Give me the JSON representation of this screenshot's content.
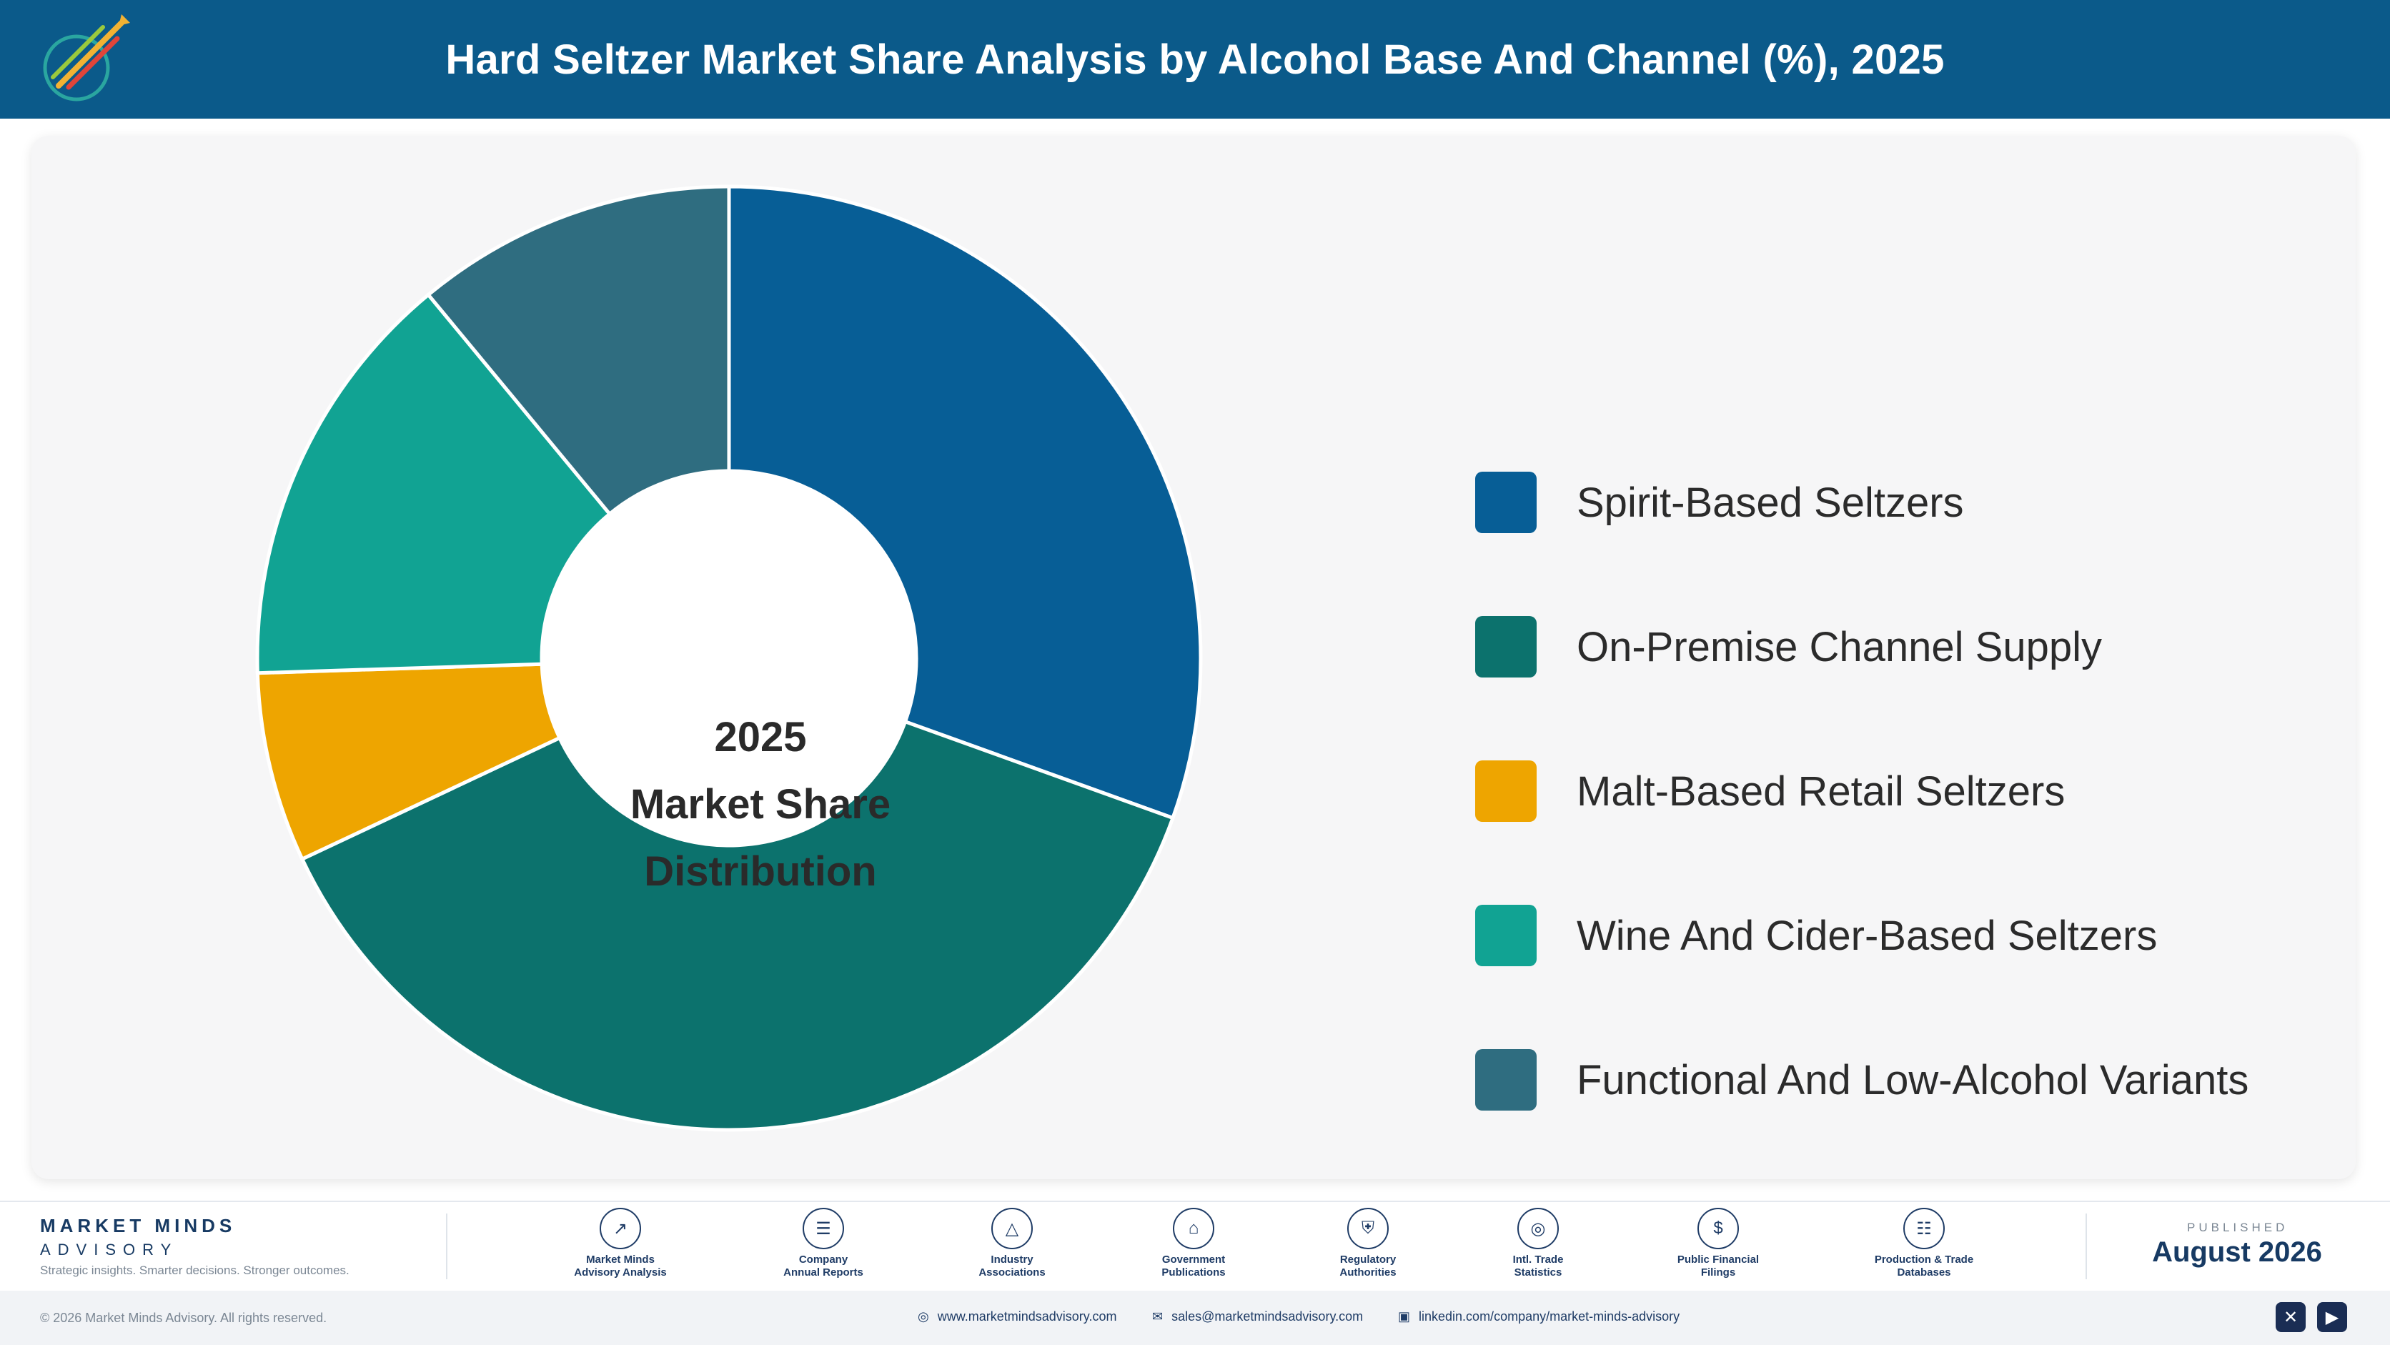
{
  "header": {
    "title": "Hard Seltzer Market Share Analysis by Alcohol Base And Channel (%), 2025"
  },
  "chart_data": {
    "type": "pie",
    "variant": "donut",
    "center_label": [
      "2025",
      "Market Share",
      "Distribution"
    ],
    "categories": [
      "Spirit-Based Seltzers",
      "On-Premise Channel Supply",
      "Malt-Based Retail Seltzers",
      "Wine And Cider-Based Seltzers",
      "Functional And Low-Alcohol Variants"
    ],
    "values": [
      30.5,
      37.5,
      6.5,
      14.5,
      11.0
    ],
    "colors": [
      "#075e96",
      "#0c726d",
      "#eea500",
      "#11a393",
      "#2f6d80"
    ],
    "legend_position": "right"
  },
  "footer": {
    "brand_name": "MARKET MINDS",
    "brand_sub": "ADVISORY",
    "brand_tagline": "Strategic insights. Smarter decisions. Stronger outcomes.",
    "sources": [
      {
        "label": "Market Minds\nAdvisory Analysis",
        "icon": "trend-icon"
      },
      {
        "label": "Company\nAnnual Reports",
        "icon": "document-icon"
      },
      {
        "label": "Industry\nAssociations",
        "icon": "network-icon"
      },
      {
        "label": "Government\nPublications",
        "icon": "building-icon"
      },
      {
        "label": "Regulatory\nAuthorities",
        "icon": "shield-icon"
      },
      {
        "label": "Intl. Trade\nStatistics",
        "icon": "globe-icon"
      },
      {
        "label": "Public Financial\nFilings",
        "icon": "dollar-icon"
      },
      {
        "label": "Production & Trade\nDatabases",
        "icon": "database-icon"
      }
    ],
    "published_label": "PUBLISHED",
    "published_date": "August 2026",
    "copyright": "© 2026 Market Minds Advisory. All rights reserved.",
    "website": "www.marketmindsadvisory.com",
    "email": "sales@marketmindsadvisory.com",
    "linkedin": "linkedin.com/company/market-minds-advisory",
    "logo_text": "Market Minds Advisory"
  }
}
